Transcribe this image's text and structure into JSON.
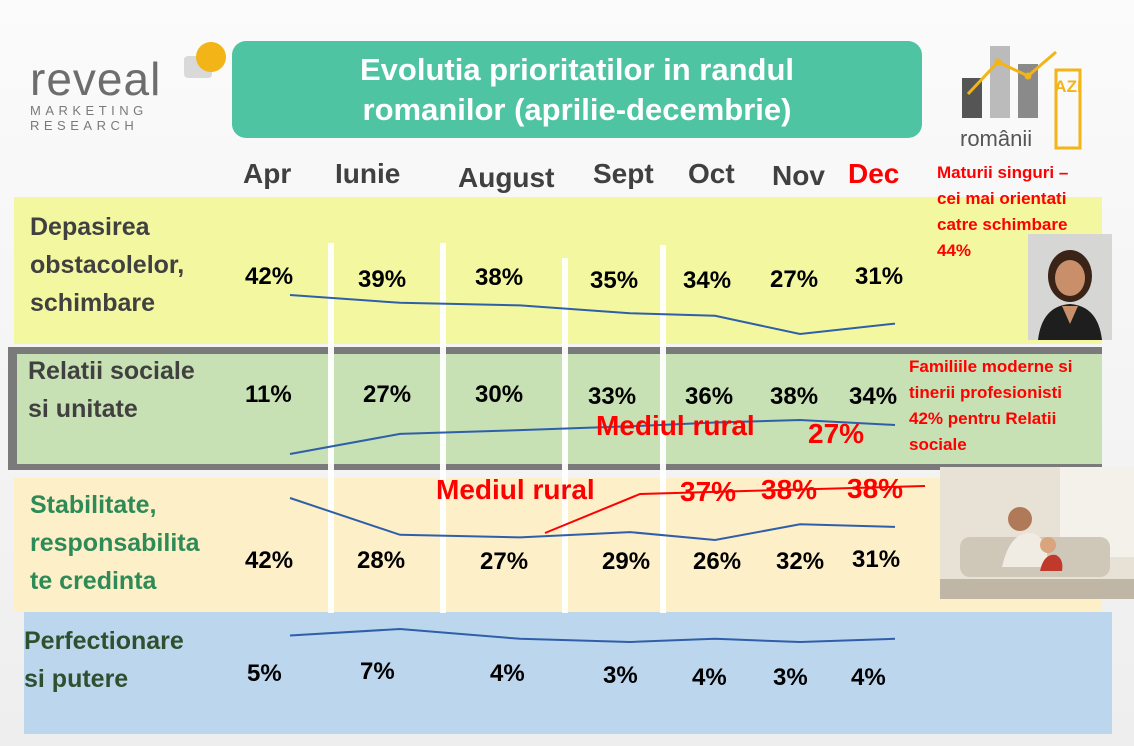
{
  "logo": {
    "word": "reveal",
    "sub1": "MARKETING",
    "sub2": "RESEARCH"
  },
  "title": {
    "line1": "Evolutia prioritatilor in randul",
    "line2": "romanilor (aprilie-decembrie)"
  },
  "ro_logo": {
    "text": "românii",
    "side": "AZI"
  },
  "months": [
    "Apr",
    "Iunie",
    "August",
    "Sept",
    "Oct",
    "Nov",
    "Dec"
  ],
  "highlight_month_color": "#ff0000",
  "categories": [
    {
      "lines": [
        "Depasirea",
        "obstacolelor,",
        "schimbare"
      ],
      "color": "#404040"
    },
    {
      "lines": [
        "Relatii sociale",
        "si unitate"
      ],
      "color": "#404040"
    },
    {
      "lines": [
        "Stabilitate,",
        "responsabilita",
        "te credinta"
      ],
      "color": "#2e8b57"
    },
    {
      "lines": [
        "Perfectionare",
        "si putere"
      ],
      "color": "#2f4f2f"
    }
  ],
  "values": {
    "row1": [
      "42%",
      "39%",
      "38%",
      "35%",
      "34%",
      "27%",
      "31%"
    ],
    "row2": [
      "11%",
      "27%",
      "30%",
      "33%",
      "36%",
      "38%",
      "34%"
    ],
    "row3": [
      "42%",
      "28%",
      "27%",
      "29%",
      "26%",
      "32%",
      "31%"
    ],
    "row4": [
      "5%",
      "7%",
      "4%",
      "3%",
      "4%",
      "3%",
      "4%"
    ]
  },
  "rural": {
    "label1": "Mediul rural",
    "value1": "27%",
    "label2": "Mediul rural",
    "values2": [
      "37%",
      "38%",
      "38%"
    ]
  },
  "notes": {
    "note1": [
      "Maturii singuri –",
      "cei mai orientati",
      "catre schimbare",
      "44%"
    ],
    "note2": [
      "Familiile moderne si",
      "tinerii profesionisti",
      "42% pentru Relatii",
      "sociale"
    ]
  },
  "chart_data": {
    "type": "line",
    "categories": [
      "Apr",
      "Iunie",
      "August",
      "Sept",
      "Oct",
      "Nov",
      "Dec"
    ],
    "series": [
      {
        "name": "Depasirea obstacolelor, schimbare",
        "values": [
          42,
          39,
          38,
          35,
          34,
          27,
          31
        ]
      },
      {
        "name": "Relatii sociale si unitate",
        "values": [
          11,
          27,
          30,
          33,
          36,
          38,
          34
        ]
      },
      {
        "name": "Stabilitate, responsabilitate credinta",
        "values": [
          42,
          28,
          27,
          29,
          26,
          32,
          31
        ]
      },
      {
        "name": "Perfectionare si putere",
        "values": [
          5,
          7,
          4,
          3,
          4,
          3,
          4
        ]
      }
    ],
    "rural_series": [
      {
        "name": "Mediul rural",
        "x": [
          "Nov"
        ],
        "values": [
          27
        ]
      },
      {
        "name": "Mediul rural",
        "x": [
          "Oct",
          "Nov",
          "Dec"
        ],
        "values": [
          37,
          38,
          38
        ]
      }
    ],
    "line_color": "#2f5fa8",
    "rural_color": "#ff0000"
  }
}
